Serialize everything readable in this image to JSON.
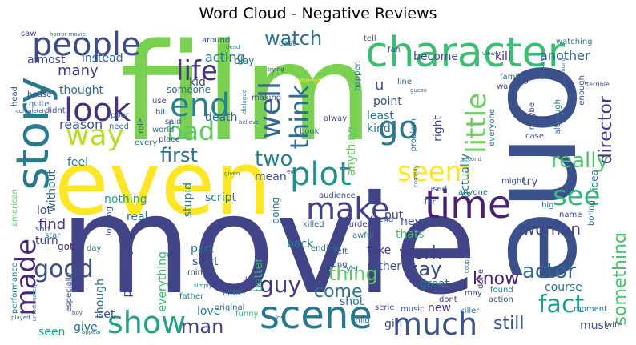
{
  "title": "Word Cloud - Negative Reviews",
  "words": {
    "film": "film",
    "movie": "movie",
    "one": "one",
    "even": "even",
    "character": "character",
    "story": "story",
    "people": "people",
    "time": "time",
    "scene": "scene",
    "plot": "plot",
    "make": "make",
    "look": "look",
    "way": "way",
    "end": "end",
    "bad": "bad",
    "well": "well",
    "think": "think",
    "go": "go",
    "seem": "seem",
    "see": "see",
    "little": "little",
    "life": "life",
    "watch": "watch",
    "good": "good",
    "made": "made",
    "show": "show",
    "much": "much",
    "guy": "guy",
    "two": "two",
    "first": "first",
    "really": "really",
    "director": "director",
    "woman": "woman",
    "actor": "actor",
    "fact": "fact",
    "know": "know",
    "thing": "thing",
    "say": "say",
    "work": "work",
    "come": "come",
    "still": "still",
    "man": "man",
    "something": "something",
    "many": "many",
    "almost": "almost",
    "instead": "instead",
    "acting": "acting",
    "another": "another",
    "become": "become",
    "kill": "kill",
    "thought": "thought",
    "reason": "reason",
    "find": "find",
    "nothing": "nothing",
    "script": "script",
    "stupid": "stupid",
    "feel": "feel",
    "lot": "lot",
    "turn": "turn",
    "got": "got",
    "start": "start",
    "part": "part",
    "probably": "probably",
    "everything": "everything",
    "love": "love",
    "set": "set",
    "give": "give",
    "seen": "seen",
    "though": "though",
    "shot": "shot",
    "new": "new",
    "great": "great",
    "girl": "girl",
    "dont": "dont",
    "thats": "thats",
    "rather": "rather",
    "take": "take",
    "back": "back",
    "better": "better",
    "real": "real",
    "going": "going",
    "must": "must",
    "course": "course",
    "death": "death",
    "kid": "kid",
    "someone": "someone",
    "mean": "mean",
    "point": "point",
    "least": "least",
    "kind": "kind",
    "right": "right",
    "actually": "actually",
    "anything": "anything",
    "try": "try",
    "put": "put",
    "idea": "idea",
    "ending": "ending",
    "funny": "funny",
    "best": "best",
    "long": "long",
    "never": "never",
    "awful": "awful",
    "friend": "friend",
    "cast": "cast",
    "play": "play",
    "around": "around",
    "fan": "fan",
    "u": "u",
    "line": "line",
    "making": "making",
    "house": "house",
    "quite": "quite",
    "didnt": "didnt",
    "poor": "poor",
    "use": "use",
    "bit": "bit",
    "said": "said",
    "world": "world",
    "place": "place",
    "need": "need",
    "role": "role",
    "book": "book",
    "always": "alway",
    "every": "every",
    "without": "without",
    "especially": "especially",
    "performance": "performance",
    "american": "american",
    "sort": "sort",
    "star": "star",
    "day": "day",
    "looking": "looking",
    "father": "father",
    "minute": "minute",
    "either": "either",
    "original": "original",
    "music": "music",
    "child": "child",
    "wife": "wife",
    "moment": "moment",
    "action": "action",
    "found": "found",
    "done": "done",
    "killer": "killer",
    "may": "may",
    "big": "big",
    "name": "name",
    "boring": "boring",
    "might": "might",
    "anyone": "anyone",
    "used": "used",
    "far": "far",
    "audience": "audience",
    "killed": "killed",
    "murder": "murder",
    "left": "left",
    "yet": "yet",
    "case": "case",
    "everyone": "everyone",
    "maybe": "maybe",
    "although": "although",
    "enough": "enough",
    "family": "family",
    "want": "want",
    "problem": "problem",
    "happen": "happen",
    "tell": "tell",
    "watching": "watching",
    "old": "old",
    "episode": "episode",
    "terrible": "terrible",
    "sound": "sound",
    "viewer": "viewer",
    "saw": "saw",
    "horror_movie": "horror movie",
    "head": "head",
    "dead": "dead",
    "trying": "trying",
    "dialogue": "dialogue",
    "attempt": "attempt",
    "guess": "guess",
    "believe": "believe",
    "given": "given",
    "evil": "evil",
    "second": "second",
    "completely": "completely",
    "simply": "simply",
    "doesnt": "doesnt",
    "unfortunately": "unfortunately",
    "played": "played",
    "boy": "boy",
    "appear": "appear",
    "interesting": "interesting",
    "couple": "couple",
    "serie": "serie",
    "comedy": "comedy",
    "lost": "lost"
  }
}
